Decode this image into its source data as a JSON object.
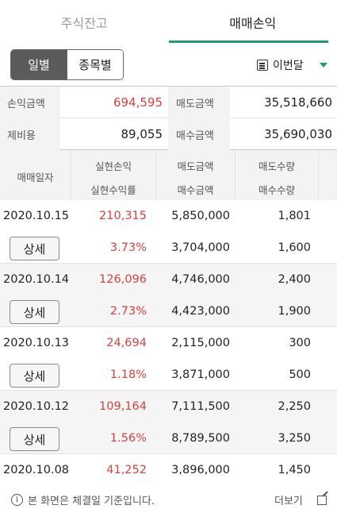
{
  "tabs": [
    {
      "label": "주식잔고",
      "active": false
    },
    {
      "label": "매매손익",
      "active": true
    }
  ],
  "segment": {
    "daily": "일별",
    "by_stock": "종목별"
  },
  "period": {
    "selected": "이번달"
  },
  "summary": {
    "profit_label": "손익금액",
    "profit_value": "694,595",
    "sell_label": "매도금액",
    "sell_value": "35,518,660",
    "fee_label": "제비용",
    "fee_value": "89,055",
    "buy_label": "매수금액",
    "buy_value": "35,690,030"
  },
  "table": {
    "headers": {
      "date": "매매일자",
      "realized_pl": "실현손익",
      "realized_rate": "실현수익률",
      "sell_amount": "매도금액",
      "buy_amount": "매수금액",
      "sell_qty": "매도수량",
      "buy_qty": "매수수량"
    },
    "detail_label": "상세",
    "rows": [
      {
        "date": "2020.10.15",
        "pl": "210,315",
        "rate": "3.73%",
        "sell_amt": "5,850,000",
        "buy_amt": "3,704,000",
        "sell_qty": "1,801",
        "buy_qty": "1,600"
      },
      {
        "date": "2020.10.14",
        "pl": "126,096",
        "rate": "2.73%",
        "sell_amt": "4,746,000",
        "buy_amt": "4,423,000",
        "sell_qty": "2,400",
        "buy_qty": "1,900"
      },
      {
        "date": "2020.10.13",
        "pl": "24,694",
        "rate": "1.18%",
        "sell_amt": "2,115,000",
        "buy_amt": "3,871,000",
        "sell_qty": "300",
        "buy_qty": "500"
      },
      {
        "date": "2020.10.12",
        "pl": "109,164",
        "rate": "1.56%",
        "sell_amt": "7,111,500",
        "buy_amt": "8,789,500",
        "sell_qty": "2,250",
        "buy_qty": "3,250"
      },
      {
        "date": "2020.10.08",
        "pl": "41,252",
        "rate": "",
        "sell_amt": "3,896,000",
        "buy_amt": "",
        "sell_qty": "1,450",
        "buy_qty": ""
      }
    ]
  },
  "footer": {
    "notice": "본 화면은 체결일 기준입니다.",
    "more": "더보기"
  },
  "colors": {
    "accent": "#1a9a78",
    "positive": "#d84040"
  }
}
